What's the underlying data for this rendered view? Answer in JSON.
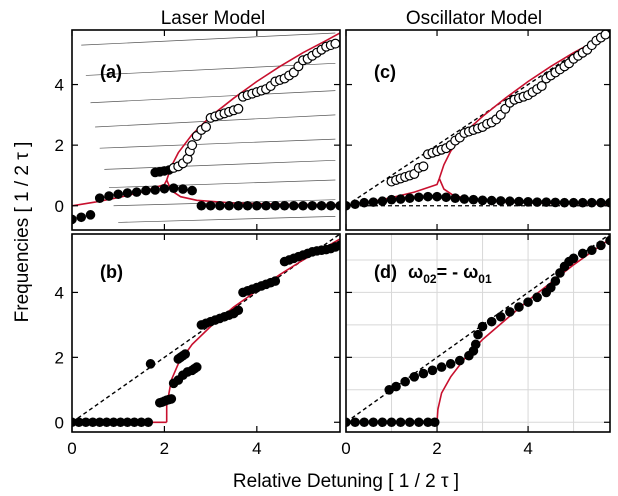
{
  "figure": {
    "column_titles": [
      "Laser Model",
      "Oscillator Model"
    ],
    "shared_ylabel": "Frequencies  [ 1 / 2 τ ]",
    "shared_xlabel": "Relative Detuning  [ 1 / 2 τ ]",
    "x_ticks": [
      0,
      2,
      4
    ],
    "x_tick_labels": [
      "0",
      "2",
      "4"
    ],
    "top_y_ticks": [
      0,
      2,
      4
    ],
    "top_y_tick_labels": [
      "0",
      "2",
      "4"
    ],
    "bottom_y_ticks": [
      0,
      2,
      4
    ],
    "bottom_y_tick_labels": [
      "0",
      "2",
      "4"
    ],
    "colors": {
      "curve": "#c8102e",
      "marker": "#000000",
      "grid_thin": "#555555",
      "grid_light": "#d8d8d8"
    }
  },
  "chart_data": [
    {
      "id": "a",
      "type": "scatter",
      "panel_label": "(a)",
      "xlim": [
        0,
        5.8
      ],
      "ylim": [
        -0.8,
        5.8
      ],
      "grid": false,
      "guide_lines": {
        "description": "thin gray near-horizontal lines",
        "lines": [
          [
            [
              0.2,
              5.3
            ],
            [
              5.7,
              5.7
            ]
          ],
          [
            [
              0.3,
              4.3
            ],
            [
              5.7,
              4.7
            ]
          ],
          [
            [
              0.4,
              3.4
            ],
            [
              5.7,
              3.8
            ]
          ],
          [
            [
              0.5,
              2.6
            ],
            [
              5.7,
              3.0
            ]
          ],
          [
            [
              0.6,
              1.9
            ],
            [
              5.7,
              2.2
            ]
          ],
          [
            [
              0.7,
              1.2
            ],
            [
              5.7,
              1.5
            ]
          ],
          [
            [
              0.8,
              0.6
            ],
            [
              5.7,
              0.85
            ]
          ],
          [
            [
              0.9,
              0.0
            ],
            [
              5.7,
              0.2
            ]
          ],
          [
            [
              1.0,
              -0.55
            ],
            [
              5.7,
              -0.35
            ]
          ]
        ]
      },
      "curves": [
        {
          "name": "",
          "points": [
            [
              0.0,
              0.0
            ],
            [
              0.5,
              0.12
            ],
            [
              1.0,
              0.27
            ],
            [
              1.5,
              0.45
            ],
            [
              2.0,
              0.7
            ],
            [
              2.05,
              0.85
            ]
          ]
        },
        {
          "name": "",
          "points": [
            [
              2.05,
              0.85
            ],
            [
              2.15,
              1.3
            ],
            [
              2.3,
              1.75
            ],
            [
              2.6,
              2.35
            ],
            [
              3.0,
              2.95
            ],
            [
              3.5,
              3.55
            ],
            [
              4.0,
              4.1
            ],
            [
              4.5,
              4.6
            ],
            [
              5.0,
              5.05
            ],
            [
              5.5,
              5.45
            ],
            [
              5.8,
              5.7
            ]
          ]
        },
        {
          "name": "",
          "points": [
            [
              2.05,
              0.85
            ],
            [
              2.15,
              0.5
            ],
            [
              2.35,
              0.3
            ],
            [
              2.7,
              0.18
            ],
            [
              3.5,
              0.09
            ],
            [
              4.5,
              0.05
            ],
            [
              5.8,
              0.03
            ]
          ]
        }
      ],
      "series": [
        {
          "name": "",
          "marker": "filled",
          "x": [
            0.0,
            0.2,
            0.4,
            0.6,
            0.8,
            1.0,
            1.2,
            1.4,
            1.6,
            1.8,
            2.0,
            2.2,
            2.4,
            2.6,
            2.8,
            3.0,
            3.2,
            3.4,
            3.6,
            3.8,
            4.0,
            4.2,
            4.4,
            4.6,
            4.8,
            5.0,
            5.2,
            5.4,
            5.6,
            5.8
          ],
          "y": [
            -0.45,
            -0.38,
            -0.3,
            0.25,
            0.32,
            0.38,
            0.42,
            0.45,
            0.5,
            0.52,
            0.56,
            0.58,
            0.55,
            0.5,
            0.0,
            0.0,
            0.0,
            0.0,
            0.0,
            0.0,
            0.0,
            0.0,
            0.0,
            0.0,
            0.0,
            0.0,
            0.0,
            0.0,
            0.0,
            0.0
          ]
        },
        {
          "name": "",
          "marker": "filled",
          "x": [
            1.8,
            1.9,
            2.0,
            2.1
          ],
          "y": [
            1.1,
            1.12,
            1.15,
            1.18
          ]
        },
        {
          "name": "",
          "marker": "open",
          "x": [
            2.2,
            2.3,
            2.4,
            2.5,
            2.55,
            2.6,
            2.7,
            2.8,
            2.9,
            3.0,
            3.1,
            3.2,
            3.3,
            3.4,
            3.5,
            3.6,
            3.7,
            3.8,
            3.9,
            4.0,
            4.1,
            4.2,
            4.3,
            4.4,
            4.5,
            4.6,
            4.7,
            4.8,
            4.9,
            5.0,
            5.1,
            5.2,
            5.3,
            5.4,
            5.5,
            5.6,
            5.7
          ],
          "y": [
            1.25,
            1.3,
            1.4,
            1.55,
            1.8,
            2.0,
            2.3,
            2.5,
            2.6,
            2.9,
            2.95,
            3.0,
            3.05,
            3.1,
            3.15,
            3.2,
            3.6,
            3.65,
            3.7,
            3.75,
            3.8,
            3.85,
            3.95,
            4.1,
            4.15,
            4.2,
            4.3,
            4.4,
            4.6,
            4.8,
            4.85,
            4.95,
            5.05,
            5.15,
            5.25,
            5.3,
            5.35
          ]
        }
      ]
    },
    {
      "id": "b",
      "type": "scatter",
      "panel_label": "(b)",
      "xlim": [
        0,
        5.8
      ],
      "ylim": [
        -0.3,
        5.8
      ],
      "grid": false,
      "reference_line": {
        "style": "dashed",
        "points": [
          [
            0,
            0
          ],
          [
            5.8,
            5.8
          ]
        ]
      },
      "curves": [
        {
          "name": "",
          "points": [
            [
              0.0,
              0.0
            ],
            [
              1.0,
              0.0
            ],
            [
              2.0,
              0.0
            ],
            [
              2.05,
              0.0
            ]
          ]
        },
        {
          "name": "",
          "points": [
            [
              2.05,
              0.0
            ],
            [
              2.05,
              0.5
            ],
            [
              2.15,
              1.3
            ],
            [
              2.3,
              1.8
            ],
            [
              2.6,
              2.4
            ],
            [
              3.0,
              2.95
            ],
            [
              3.5,
              3.55
            ],
            [
              4.0,
              4.05
            ],
            [
              4.5,
              4.55
            ],
            [
              5.0,
              5.0
            ],
            [
              5.5,
              5.4
            ],
            [
              5.8,
              5.65
            ]
          ]
        }
      ],
      "series": [
        {
          "name": "",
          "marker": "filled",
          "x": [
            0.0,
            0.15,
            0.3,
            0.45,
            0.6,
            0.75,
            0.9,
            1.05,
            1.2,
            1.35,
            1.5,
            1.65,
            1.9,
            1.95,
            2.0,
            2.05,
            2.1,
            2.15,
            2.2,
            2.3,
            2.4,
            2.5,
            2.6,
            2.65,
            2.7,
            1.7,
            2.3,
            2.35,
            2.4,
            2.45,
            2.8,
            2.9,
            3.0,
            3.1,
            3.2,
            3.3,
            3.4,
            3.5,
            3.6,
            3.7,
            3.8,
            3.9,
            4.0,
            4.1,
            4.2,
            4.3,
            4.4,
            4.6,
            4.7,
            4.8,
            4.9,
            5.0,
            5.1,
            5.2,
            5.3,
            5.4,
            5.5,
            5.6,
            5.7,
            5.8
          ],
          "y": [
            0.0,
            0.0,
            0.0,
            0.0,
            0.0,
            0.0,
            0.0,
            0.0,
            0.0,
            0.0,
            0.0,
            0.0,
            0.6,
            0.62,
            0.65,
            0.68,
            0.7,
            0.72,
            1.2,
            1.3,
            1.45,
            1.55,
            1.6,
            1.65,
            1.7,
            1.8,
            1.95,
            2.0,
            2.05,
            2.1,
            3.0,
            3.05,
            3.1,
            3.15,
            3.2,
            3.25,
            3.3,
            3.35,
            3.45,
            4.0,
            4.05,
            4.1,
            4.15,
            4.2,
            4.25,
            4.3,
            4.35,
            4.95,
            5.0,
            5.05,
            5.1,
            5.15,
            5.2,
            5.25,
            5.28,
            5.3,
            5.32,
            5.35,
            5.4,
            5.45
          ]
        }
      ]
    },
    {
      "id": "c",
      "type": "scatter",
      "panel_label": "(c)",
      "xlim": [
        0,
        5.8
      ],
      "ylim": [
        -0.8,
        5.8
      ],
      "grid": false,
      "reference_line": {
        "style": "dashed",
        "points": [
          [
            0,
            0
          ],
          [
            5.8,
            5.8
          ]
        ]
      },
      "zero_line": {
        "style": "dashed",
        "y": 0
      },
      "curves": [
        {
          "name": "",
          "points": [
            [
              0.0,
              0.0
            ],
            [
              0.5,
              0.12
            ],
            [
              1.0,
              0.27
            ],
            [
              1.5,
              0.45
            ],
            [
              2.0,
              0.7
            ],
            [
              2.05,
              0.9
            ]
          ]
        },
        {
          "name": "",
          "points": [
            [
              2.05,
              0.9
            ],
            [
              2.15,
              1.35
            ],
            [
              2.3,
              1.8
            ],
            [
              2.6,
              2.4
            ],
            [
              3.0,
              2.95
            ],
            [
              3.5,
              3.55
            ],
            [
              4.0,
              4.1
            ],
            [
              4.5,
              4.6
            ],
            [
              5.0,
              5.05
            ],
            [
              5.5,
              5.45
            ],
            [
              5.8,
              5.7
            ]
          ]
        },
        {
          "name": "",
          "points": [
            [
              2.05,
              0.9
            ],
            [
              2.15,
              0.55
            ],
            [
              2.35,
              0.35
            ],
            [
              2.7,
              0.22
            ],
            [
              3.5,
              0.12
            ],
            [
              4.5,
              0.08
            ],
            [
              5.8,
              0.05
            ]
          ]
        }
      ],
      "series": [
        {
          "name": "",
          "marker": "filled",
          "x": [
            0.0,
            0.2,
            0.4,
            0.6,
            0.8,
            1.0,
            1.2,
            1.4,
            1.6,
            1.8,
            2.0,
            2.2,
            2.4,
            2.6,
            2.8,
            3.0,
            3.2,
            3.4,
            3.6,
            3.8,
            4.0,
            4.2,
            4.4,
            4.6,
            4.8,
            5.0,
            5.2,
            5.4,
            5.6,
            5.8
          ],
          "y": [
            0.0,
            0.05,
            0.1,
            0.12,
            0.15,
            0.2,
            0.22,
            0.25,
            0.28,
            0.3,
            0.3,
            0.28,
            0.25,
            0.22,
            0.2,
            0.18,
            0.17,
            0.16,
            0.15,
            0.14,
            0.13,
            0.12,
            0.12,
            0.11,
            0.1,
            0.1,
            0.1,
            0.1,
            0.1,
            0.1
          ]
        },
        {
          "name": "",
          "marker": "open",
          "x": [
            1.0,
            1.1,
            1.2,
            1.3,
            1.4,
            1.5,
            1.6,
            1.7,
            1.8,
            1.9,
            2.0,
            2.1,
            2.2,
            2.3,
            2.4,
            2.5,
            2.6,
            2.7,
            2.8,
            2.9,
            3.0,
            3.1,
            3.2,
            3.3,
            3.4,
            3.5,
            3.6,
            3.7,
            3.8,
            3.9,
            4.0,
            4.1,
            4.2,
            4.3,
            4.4,
            4.5,
            4.6,
            4.7,
            4.8,
            4.9,
            5.0,
            5.1,
            5.2,
            5.3,
            5.4,
            5.5,
            5.6,
            5.7
          ],
          "y": [
            0.8,
            0.85,
            0.9,
            0.95,
            1.0,
            1.05,
            1.25,
            1.3,
            1.7,
            1.75,
            1.8,
            1.85,
            1.9,
            2.0,
            2.15,
            2.25,
            2.4,
            2.45,
            2.5,
            2.55,
            2.6,
            2.7,
            2.75,
            2.85,
            3.0,
            3.2,
            3.4,
            3.5,
            3.55,
            3.6,
            3.65,
            3.75,
            3.85,
            3.95,
            4.2,
            4.3,
            4.4,
            4.5,
            4.6,
            4.7,
            4.85,
            4.95,
            5.05,
            5.15,
            5.3,
            5.45,
            5.55,
            5.65
          ]
        }
      ]
    },
    {
      "id": "d",
      "type": "scatter",
      "panel_label": "(d)",
      "annotation_parts": [
        "ω",
        "02",
        "= - ω",
        "01"
      ],
      "xlim": [
        0,
        5.8
      ],
      "ylim": [
        -0.3,
        5.8
      ],
      "grid": true,
      "reference_line": {
        "style": "dashed",
        "points": [
          [
            0,
            0
          ],
          [
            5.8,
            5.8
          ]
        ]
      },
      "curves": [
        {
          "name": "",
          "points": [
            [
              0.0,
              0.0
            ],
            [
              1.0,
              0.0
            ],
            [
              2.0,
              0.0
            ]
          ]
        },
        {
          "name": "",
          "points": [
            [
              2.0,
              0.0
            ],
            [
              2.02,
              0.4
            ],
            [
              2.1,
              0.9
            ],
            [
              2.3,
              1.4
            ],
            [
              2.6,
              1.95
            ],
            [
              3.0,
              2.55
            ],
            [
              3.5,
              3.15
            ],
            [
              4.0,
              3.75
            ],
            [
              4.5,
              4.3
            ],
            [
              5.0,
              4.85
            ],
            [
              5.5,
              5.35
            ],
            [
              5.8,
              5.65
            ]
          ]
        }
      ],
      "series": [
        {
          "name": "",
          "marker": "filled",
          "x": [
            0.0,
            0.2,
            0.4,
            0.6,
            0.8,
            1.0,
            1.2,
            1.4,
            1.6,
            1.8,
            1.95,
            0.95,
            1.1,
            1.3,
            1.5,
            1.7,
            1.9,
            2.1,
            2.3,
            2.5,
            2.7,
            2.8,
            2.85,
            2.9,
            3.0,
            3.2,
            3.4,
            3.6,
            3.8,
            4.0,
            4.2,
            4.4,
            4.5,
            4.6,
            4.7,
            4.8,
            4.9,
            5.0,
            5.2,
            5.4,
            5.6,
            5.8
          ],
          "y": [
            0.0,
            0.0,
            0.0,
            0.0,
            0.0,
            0.0,
            0.0,
            0.0,
            0.0,
            0.0,
            0.0,
            1.0,
            1.1,
            1.25,
            1.4,
            1.5,
            1.6,
            1.7,
            1.8,
            1.9,
            2.05,
            2.2,
            2.4,
            2.7,
            2.95,
            3.1,
            3.25,
            3.4,
            3.55,
            3.7,
            3.85,
            4.0,
            4.15,
            4.35,
            4.6,
            4.8,
            4.95,
            5.05,
            5.2,
            5.3,
            5.45,
            5.6
          ]
        }
      ]
    }
  ]
}
